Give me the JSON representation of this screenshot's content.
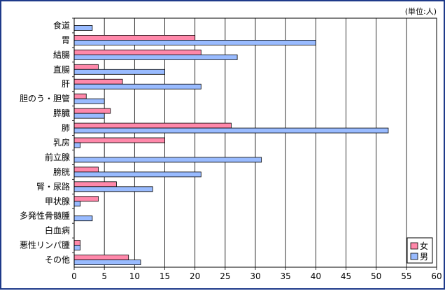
{
  "chart_data": {
    "type": "bar",
    "orientation": "horizontal",
    "unit_label": "(単位:人)",
    "categories": [
      "食道",
      "胃",
      "結腸",
      "直腸",
      "肝",
      "胆のう・胆管",
      "膵臓",
      "肺",
      "乳房",
      "前立腺",
      "膀胱",
      "腎・尿路",
      "甲状腺",
      "多発性骨髄腫",
      "白血病",
      "悪性リンパ腫",
      "その他"
    ],
    "series": [
      {
        "name": "女",
        "color": "#ff88aa",
        "values": [
          0,
          20,
          21,
          4,
          8,
          2,
          6,
          26,
          15,
          0,
          4,
          7,
          4,
          0,
          0,
          1,
          9
        ]
      },
      {
        "name": "男",
        "color": "#99bbff",
        "values": [
          3,
          40,
          27,
          15,
          21,
          5,
          5,
          52,
          1,
          31,
          21,
          13,
          1,
          3,
          0,
          1,
          11
        ]
      }
    ],
    "xlim": [
      0,
      60
    ],
    "xticks": [
      0,
      5,
      10,
      15,
      20,
      25,
      30,
      35,
      40,
      45,
      50,
      55,
      60
    ],
    "grid": "vertical",
    "legend_position": "bottom-right",
    "title": "",
    "xlabel": "",
    "ylabel": ""
  }
}
